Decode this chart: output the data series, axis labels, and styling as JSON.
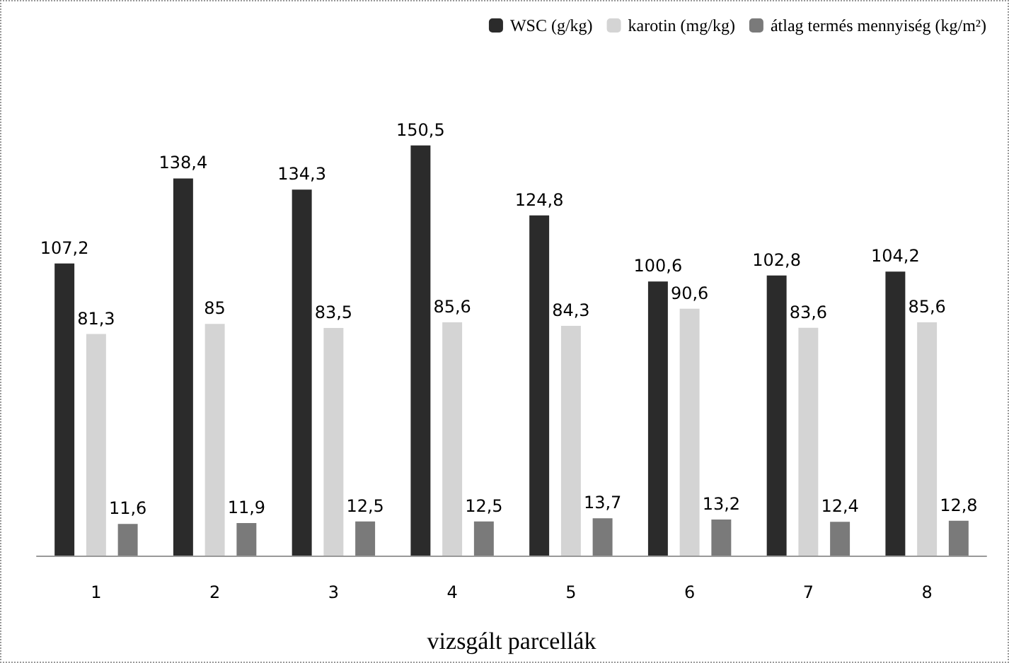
{
  "chart_data": {
    "type": "bar",
    "xlabel": "vizsgált parcellák",
    "categories": [
      "1",
      "2",
      "3",
      "4",
      "5",
      "6",
      "7",
      "8"
    ],
    "series": [
      {
        "name": "WSC (g/kg)",
        "color": "#2b2b2b",
        "values": [
          107.2,
          138.4,
          134.3,
          150.5,
          124.8,
          100.6,
          102.8,
          104.2
        ],
        "value_labels": [
          "107,2",
          "138,4",
          "134,3",
          "150,5",
          "124,8",
          "100,6",
          "102,8",
          "104,2"
        ]
      },
      {
        "name": "karotin (mg/kg)",
        "color": "#d4d4d4",
        "values": [
          81.3,
          85,
          83.5,
          85.6,
          84.3,
          90.6,
          83.6,
          85.6
        ],
        "value_labels": [
          "81,3",
          "85",
          "83,5",
          "85,6",
          "84,3",
          "90,6",
          "83,6",
          "85,6"
        ]
      },
      {
        "name": "átlag termés mennyiség (kg/m²)",
        "color": "#7a7a7a",
        "values": [
          11.6,
          11.9,
          12.5,
          12.5,
          13.7,
          13.2,
          12.4,
          12.8
        ],
        "value_labels": [
          "11,6",
          "11,9",
          "12,5",
          "12,5",
          "13,7",
          "13,2",
          "12,4",
          "12,8"
        ]
      }
    ],
    "legend": "top right"
  }
}
